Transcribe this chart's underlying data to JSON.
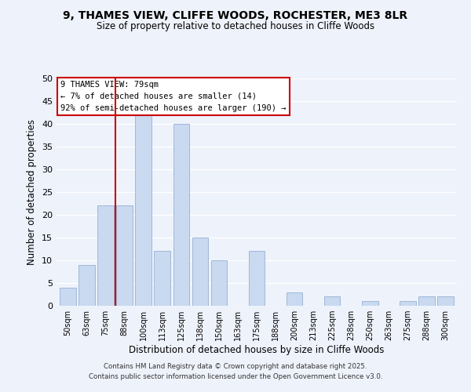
{
  "title": "9, THAMES VIEW, CLIFFE WOODS, ROCHESTER, ME3 8LR",
  "subtitle": "Size of property relative to detached houses in Cliffe Woods",
  "xlabel": "Distribution of detached houses by size in Cliffe Woods",
  "ylabel": "Number of detached properties",
  "bar_labels": [
    "50sqm",
    "63sqm",
    "75sqm",
    "88sqm",
    "100sqm",
    "113sqm",
    "125sqm",
    "138sqm",
    "150sqm",
    "163sqm",
    "175sqm",
    "188sqm",
    "200sqm",
    "213sqm",
    "225sqm",
    "238sqm",
    "250sqm",
    "263sqm",
    "275sqm",
    "288sqm",
    "300sqm"
  ],
  "bar_values": [
    4,
    9,
    22,
    22,
    42,
    12,
    40,
    15,
    10,
    0,
    12,
    0,
    3,
    0,
    2,
    0,
    1,
    0,
    1,
    2,
    2
  ],
  "bar_color": "#c8d9f0",
  "bar_edge_color": "#a0b8d8",
  "vline_x": 2.5,
  "vline_color": "#cc0000",
  "ylim": [
    0,
    50
  ],
  "yticks": [
    0,
    5,
    10,
    15,
    20,
    25,
    30,
    35,
    40,
    45,
    50
  ],
  "annotation_title": "9 THAMES VIEW: 79sqm",
  "annotation_line1": "← 7% of detached houses are smaller (14)",
  "annotation_line2": "92% of semi-detached houses are larger (190) →",
  "annotation_box_color": "#ffffff",
  "annotation_box_edge": "#cc0000",
  "background_color": "#eef2fb",
  "grid_color": "#ffffff",
  "footnote1": "Contains HM Land Registry data © Crown copyright and database right 2025.",
  "footnote2": "Contains public sector information licensed under the Open Government Licence v3.0."
}
